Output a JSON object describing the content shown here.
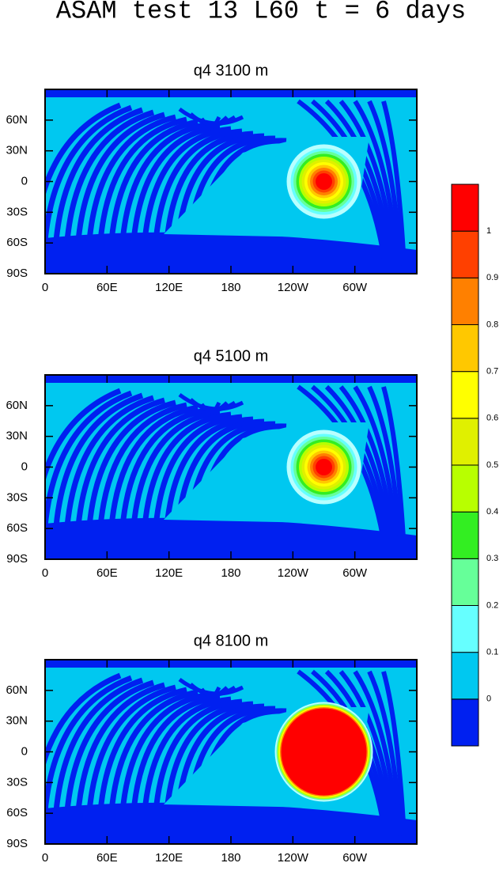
{
  "title": "ASAM test 13 L60 t = 6 days",
  "chart_data": [
    {
      "type": "contour",
      "title": "q4 3100 m",
      "xlim": [
        0,
        360
      ],
      "xticks": [
        0,
        {
          "value": 60,
          "label": "60E"
        },
        {
          "value": 120,
          "label": "120E"
        },
        180,
        {
          "value": 240,
          "label": "120W"
        },
        {
          "value": 300,
          "label": "60W"
        }
      ],
      "ylim": [
        -90,
        90
      ],
      "yticks": [
        {
          "value": -90,
          "label": "90S"
        },
        {
          "value": -60,
          "label": "60S"
        },
        {
          "value": -30,
          "label": "30S"
        },
        0,
        {
          "value": 30,
          "label": "30N"
        },
        {
          "value": 60,
          "label": "60N"
        }
      ]
    },
    {
      "type": "contour",
      "title": "q4 5100 m",
      "xlim": [
        0,
        360
      ],
      "xticks": [
        0,
        {
          "value": 60,
          "label": "60E"
        },
        {
          "value": 120,
          "label": "120E"
        },
        180,
        {
          "value": 240,
          "label": "120W"
        },
        {
          "value": 300,
          "label": "60W"
        }
      ],
      "ylim": [
        -90,
        90
      ],
      "yticks": [
        {
          "value": -90,
          "label": "90S"
        },
        {
          "value": -60,
          "label": "60S"
        },
        {
          "value": -30,
          "label": "30S"
        },
        0,
        {
          "value": 30,
          "label": "30N"
        },
        {
          "value": 60,
          "label": "60N"
        }
      ]
    },
    {
      "type": "contour",
      "title": "q4 8100 m",
      "xlim": [
        0,
        360
      ],
      "xticks": [
        0,
        {
          "value": 60,
          "label": "60E"
        },
        {
          "value": 120,
          "label": "120E"
        },
        180,
        {
          "value": 240,
          "label": "120W"
        },
        {
          "value": 300,
          "label": "60W"
        }
      ],
      "ylim": [
        -90,
        90
      ],
      "yticks": [
        {
          "value": -90,
          "label": "90S"
        },
        {
          "value": -60,
          "label": "60S"
        },
        {
          "value": -30,
          "label": "30S"
        },
        0,
        {
          "value": 30,
          "label": "30N"
        },
        {
          "value": 60,
          "label": "60N"
        }
      ]
    }
  ],
  "colorbar": {
    "levels": [
      0,
      0.1,
      0.2,
      0.3,
      0.4,
      0.5,
      0.6,
      0.7,
      0.8,
      0.9,
      1
    ],
    "colors": [
      "#0020f0",
      "#00c8f0",
      "#66ffff",
      "#66ff99",
      "#33ee22",
      "#b8ff00",
      "#e0f000",
      "#ffff00",
      "#ffc800",
      "#ff8000",
      "#ff4000",
      "#ff0000"
    ]
  }
}
